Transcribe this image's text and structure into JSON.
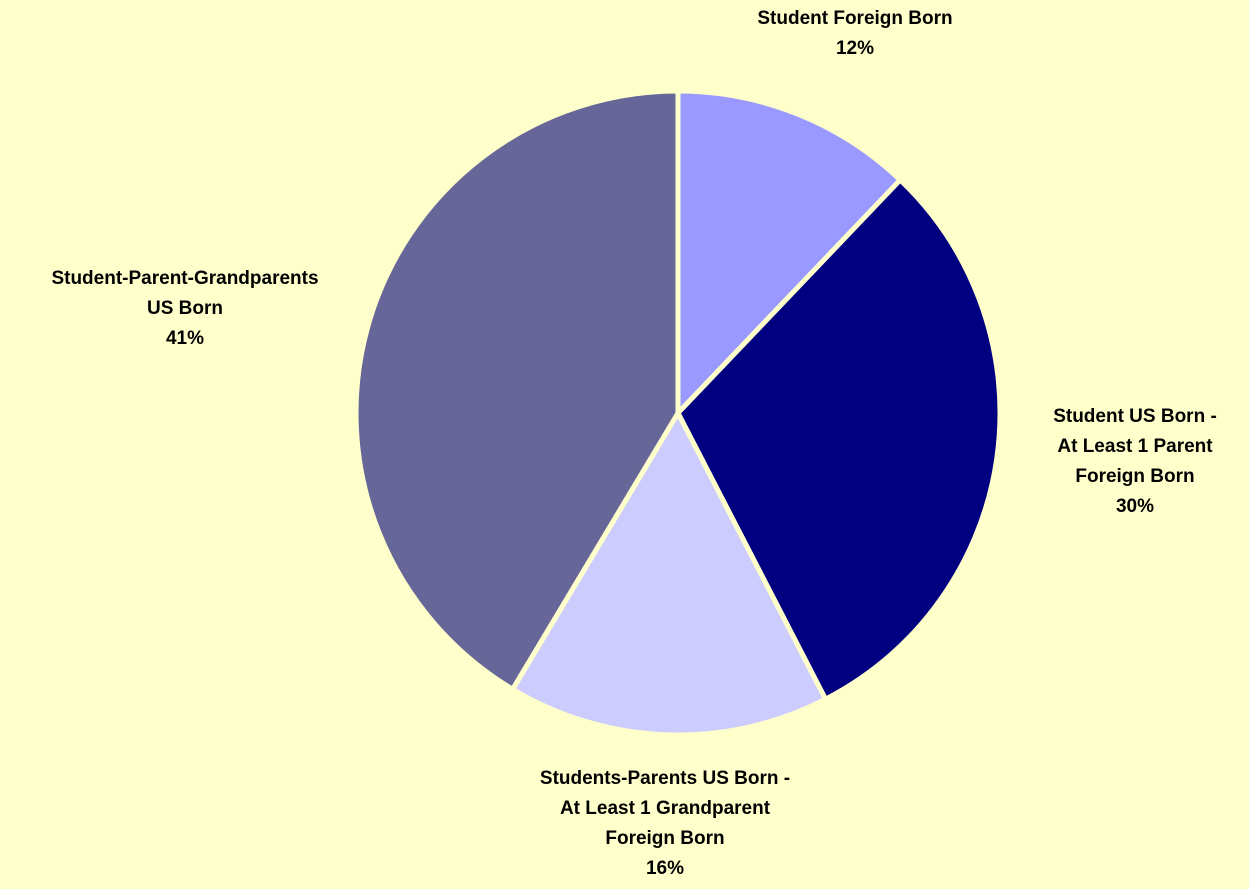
{
  "chart_data": {
    "type": "pie",
    "title": "",
    "start_angle_deg": 0,
    "direction": "clockwise",
    "separator_color": "#FFFFCC",
    "slices": [
      {
        "label_lines": [
          "Student Foreign Born"
        ],
        "pct_text": "12%",
        "value": 12,
        "color": "#9999FF"
      },
      {
        "label_lines": [
          "Student US Born -",
          "At Least 1 Parent",
          "Foreign Born"
        ],
        "pct_text": "30%",
        "value": 30,
        "color": "#000080"
      },
      {
        "label_lines": [
          "Students-Parents US Born -",
          "At Least 1 Grandparent",
          "Foreign Born"
        ],
        "pct_text": "16%",
        "value": 16,
        "color": "#CCCCFF"
      },
      {
        "label_lines": [
          "Student-Parent-Grandparents",
          "US Born"
        ],
        "pct_text": "41%",
        "value": 41,
        "color": "#666699"
      }
    ]
  }
}
